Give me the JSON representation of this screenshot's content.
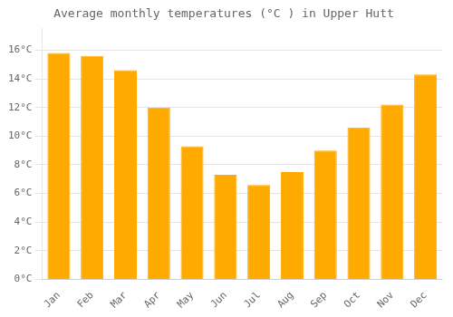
{
  "chart_data": {
    "type": "bar",
    "title": "Average monthly temperatures (°C ) in Upper Hutt",
    "categories": [
      "Jan",
      "Feb",
      "Mar",
      "Apr",
      "May",
      "Jun",
      "Jul",
      "Aug",
      "Sep",
      "Oct",
      "Nov",
      "Dec"
    ],
    "values": [
      15.8,
      15.6,
      14.6,
      12.0,
      9.3,
      7.3,
      6.6,
      7.5,
      9.0,
      10.6,
      12.2,
      14.3
    ],
    "color": "#FFAA00",
    "ylim": [
      0,
      17.5
    ],
    "yticks": [
      {
        "value": 0,
        "label": "0°C"
      },
      {
        "value": 2,
        "label": "2°C"
      },
      {
        "value": 4,
        "label": "4°C"
      },
      {
        "value": 6,
        "label": "6°C"
      },
      {
        "value": 8,
        "label": "8°C"
      },
      {
        "value": 10,
        "label": "10°C"
      },
      {
        "value": 12,
        "label": "12°C"
      },
      {
        "value": 14,
        "label": "14°C"
      },
      {
        "value": 16,
        "label": "16°C"
      }
    ],
    "grid": true
  }
}
